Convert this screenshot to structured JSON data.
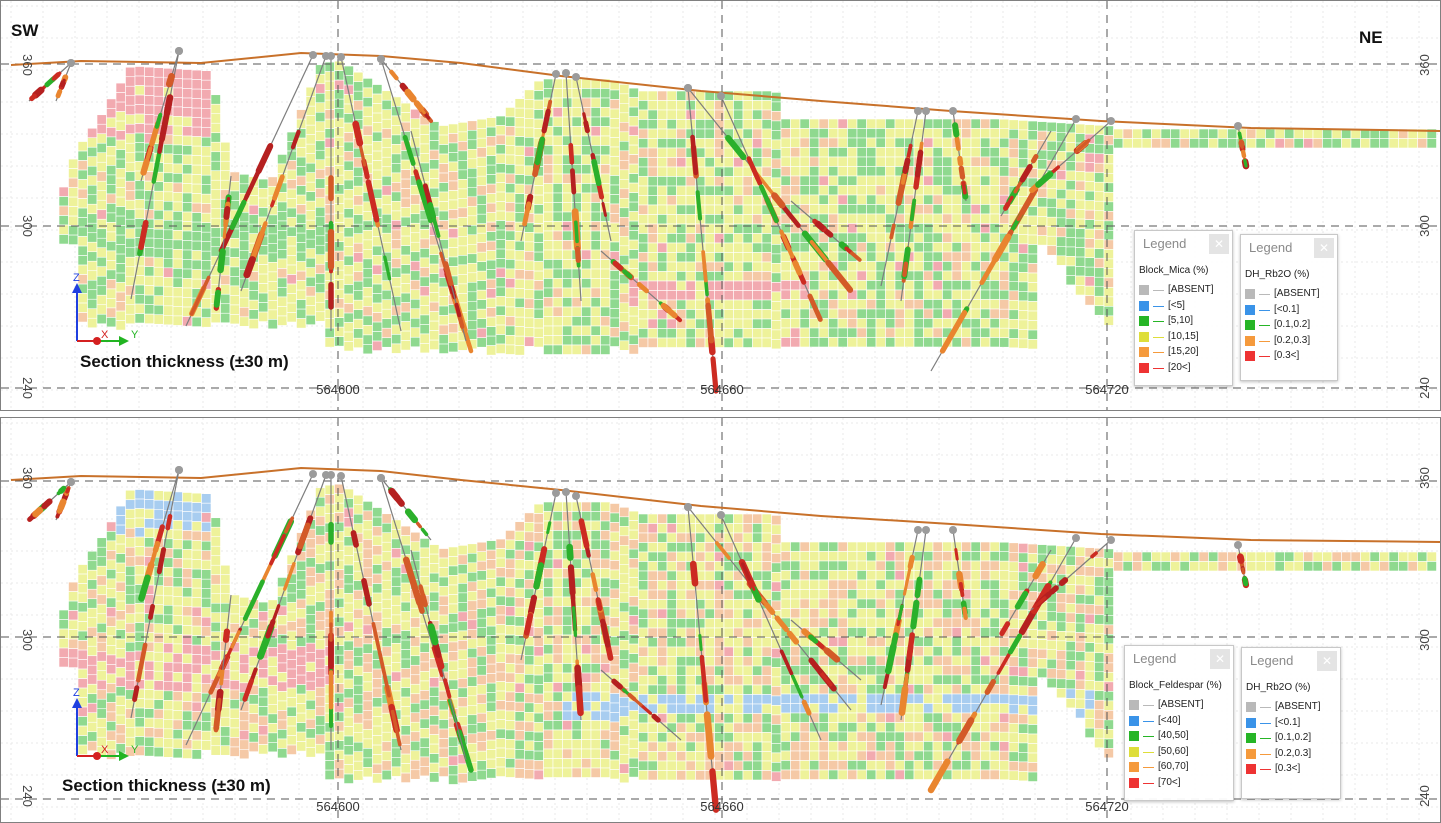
{
  "orientation": {
    "left": "SW",
    "right": "NE"
  },
  "colors": {
    "topo_line": "#c8712a",
    "drill_trace": "#7d7d7d",
    "collar": "#9b9b9b",
    "block_outline": "#6e6e6e",
    "grid_line": "#ffffff"
  },
  "icons": {
    "axis_triad": "xyz-axis-icon",
    "close": "close-icon"
  },
  "panels": [
    {
      "id": "mica",
      "section_label": "Section thickness (±30 m)",
      "x_ticks": [
        "564600",
        "564660",
        "564720"
      ],
      "y_ticks": [
        "360",
        "300",
        "240"
      ],
      "triad": {
        "z": "Z",
        "x": "X",
        "y": "Y"
      },
      "legends": [
        {
          "title": "Legend",
          "field": "Block_Mica (%)",
          "items": [
            {
              "label": "[ABSENT]",
              "color": "#b9b9b9"
            },
            {
              "label": "[<5]",
              "color": "#3a93e8"
            },
            {
              "label": "[5,10]",
              "color": "#26b526"
            },
            {
              "label": "[10,15]",
              "color": "#dede3a"
            },
            {
              "label": "[15,20]",
              "color": "#f59a3c"
            },
            {
              "label": "[20<]",
              "color": "#ee3333"
            }
          ]
        },
        {
          "title": "Legend",
          "field": "DH_Rb2O (%)",
          "items": [
            {
              "label": "[ABSENT]",
              "color": "#b9b9b9"
            },
            {
              "label": "[<0.1]",
              "color": "#3a93e8"
            },
            {
              "label": "[0.1,0.2]",
              "color": "#26b526"
            },
            {
              "label": "[0.2,0.3]",
              "color": "#f59a3c"
            },
            {
              "label": "[0.3<]",
              "color": "#ee3333"
            }
          ]
        }
      ]
    },
    {
      "id": "feldspar",
      "section_label": "Section thickness (±30 m)",
      "x_ticks": [
        "564600",
        "564660",
        "564720"
      ],
      "y_ticks": [
        "360",
        "300",
        "240"
      ],
      "triad": {
        "z": "Z",
        "x": "X",
        "y": "Y"
      },
      "legends": [
        {
          "title": "Legend",
          "field": "Block_Feldespar (%)",
          "items": [
            {
              "label": "[ABSENT]",
              "color": "#b9b9b9"
            },
            {
              "label": "[<40]",
              "color": "#3a93e8"
            },
            {
              "label": "[40,50]",
              "color": "#26b526"
            },
            {
              "label": "[50,60]",
              "color": "#dede3a"
            },
            {
              "label": "[60,70]",
              "color": "#f59a3c"
            },
            {
              "label": "[70<]",
              "color": "#ee3333"
            }
          ]
        },
        {
          "title": "Legend",
          "field": "DH_Rb2O (%)",
          "items": [
            {
              "label": "[ABSENT]",
              "color": "#b9b9b9"
            },
            {
              "label": "[<0.1]",
              "color": "#3a93e8"
            },
            {
              "label": "[0.1,0.2]",
              "color": "#26b526"
            },
            {
              "label": "[0.2,0.3]",
              "color": "#f59a3c"
            },
            {
              "label": "[0.3<]",
              "color": "#ee3333"
            }
          ]
        }
      ]
    }
  ]
}
